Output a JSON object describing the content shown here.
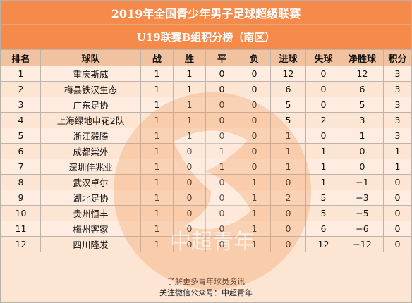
{
  "title": "2019年全国青少年男子足球超级联赛",
  "subtitle": "U19联赛B组积分榜（南区）",
  "headers": [
    "排名",
    "球队",
    "战",
    "胜",
    "平",
    "负",
    "进球",
    "失球",
    "净胜球",
    "积分"
  ],
  "rows": [
    [
      "1",
      "重庆斯威",
      "1",
      "1",
      "0",
      "0",
      "12",
      "0",
      "12",
      "3"
    ],
    [
      "2",
      "梅县铁汉生态",
      "1",
      "1",
      "0",
      "0",
      "6",
      "0",
      "6",
      "3"
    ],
    [
      "3",
      "广东足协",
      "1",
      "1",
      "0",
      "0",
      "5",
      "0",
      "5",
      "3"
    ],
    [
      "4",
      "上海绿地申花2队",
      "1",
      "1",
      "0",
      "0",
      "5",
      "2",
      "3",
      "3"
    ],
    [
      "5",
      "浙江毅腾",
      "1",
      "1",
      "0",
      "0",
      "1",
      "0",
      "1",
      "3"
    ],
    [
      "6",
      "成都棠外",
      "1",
      "0",
      "1",
      "0",
      "1",
      "1",
      "0",
      "1"
    ],
    [
      "7",
      "深圳佳兆业",
      "1",
      "0",
      "1",
      "0",
      "1",
      "1",
      "0",
      "1"
    ],
    [
      "8",
      "武汉卓尔",
      "1",
      "0",
      "0",
      "1",
      "0",
      "1",
      "−1",
      "0"
    ],
    [
      "9",
      "湖北足协",
      "1",
      "0",
      "0",
      "1",
      "2",
      "5",
      "−3",
      "0"
    ],
    [
      "10",
      "贵州恒丰",
      "1",
      "0",
      "0",
      "1",
      "0",
      "5",
      "−5",
      "0"
    ],
    [
      "11",
      "梅州客家",
      "1",
      "0",
      "0",
      "1",
      "0",
      "6",
      "−6",
      "0"
    ],
    [
      "12",
      "四川隆发",
      "1",
      "0",
      "0",
      "1",
      "0",
      "12",
      "−12",
      "0"
    ]
  ],
  "footer": {
    "line1": "了解更多青年球员资讯",
    "line2": "关注微信公众号：中超青年"
  },
  "watermark": {
    "text": "中超青年"
  },
  "colors": {
    "banner": "#f68a4a",
    "header": "#f1c29f",
    "body": "#fde5d3"
  }
}
